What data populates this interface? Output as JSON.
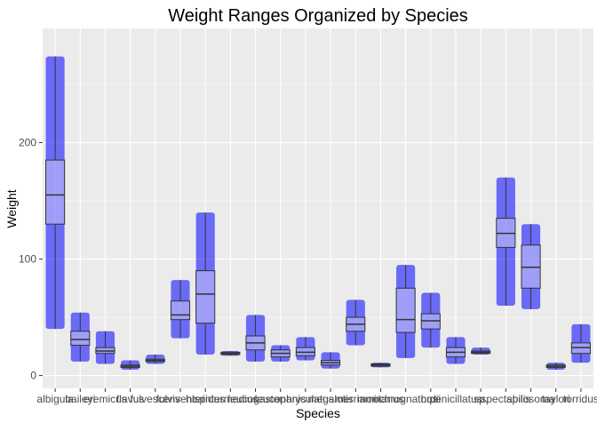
{
  "chart_data": {
    "type": "boxplot",
    "title": "Weight Ranges Organized by Species",
    "x_label": "Species",
    "y_label": "Weight",
    "categories": [
      "albigula",
      "baileyi",
      "eremicus",
      "flavus",
      "fulvescens",
      "fulviventer",
      "hispidus",
      "intermedius",
      "leucogaster",
      "leucophrys",
      "maniculatus",
      "megalotis",
      "merriami",
      "montanus",
      "ochrognathus",
      "ordii",
      "penicillatus",
      "sp.",
      "spectabilis",
      "spilosoma",
      "taylori",
      "torridus"
    ],
    "stats": [
      [
        40,
        130,
        155,
        185,
        274
      ],
      [
        12,
        26,
        31,
        38,
        54
      ],
      [
        10,
        19,
        21,
        24,
        38
      ],
      [
        5,
        7,
        8,
        9,
        13
      ],
      [
        10,
        12,
        13,
        14,
        18
      ],
      [
        32,
        48,
        52,
        64,
        82
      ],
      [
        18,
        45,
        70,
        90,
        140
      ],
      [
        17,
        18,
        19,
        20,
        21
      ],
      [
        12,
        22,
        28,
        34,
        52
      ],
      [
        12,
        16,
        19,
        22,
        26
      ],
      [
        13,
        17,
        20,
        24,
        33
      ],
      [
        6,
        9,
        11,
        13,
        20
      ],
      [
        26,
        38,
        44,
        50,
        65
      ],
      [
        7,
        8,
        9,
        10,
        11
      ],
      [
        15,
        37,
        48,
        75,
        95
      ],
      [
        24,
        40,
        47,
        53,
        71
      ],
      [
        10,
        16,
        20,
        24,
        33
      ],
      [
        18,
        19,
        20,
        21,
        24
      ],
      [
        60,
        110,
        122,
        135,
        170
      ],
      [
        57,
        75,
        93,
        112,
        130
      ],
      [
        5,
        7,
        8,
        9,
        11
      ],
      [
        11,
        19,
        24,
        28,
        44
      ]
    ],
    "point_color": "#0000ff",
    "ylim": [
      -11,
      298
    ],
    "yticks": [
      0,
      100,
      200
    ],
    "yminor": [
      50,
      150,
      250
    ],
    "grid": true
  }
}
